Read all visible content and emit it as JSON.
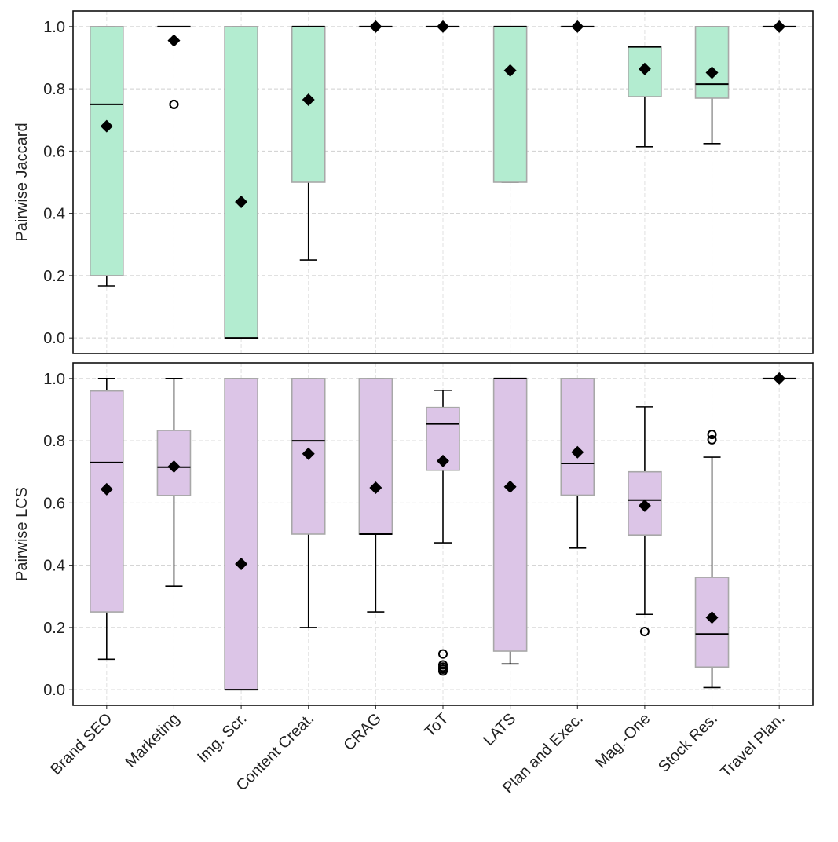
{
  "chart_data": [
    {
      "type": "box",
      "ylabel": "Pairwise Jaccard",
      "ylim": [
        -0.05,
        1.05
      ],
      "yticks": [
        "0.0",
        "0.2",
        "0.4",
        "0.6",
        "0.8",
        "1.0"
      ],
      "grid": true,
      "box_color": "#b3ecd0",
      "categories": [
        "Brand SEO",
        "Marketing",
        "Img. Scr.",
        "Content Creat.",
        "CRAG",
        "ToT",
        "LATS",
        "Plan and Exec.",
        "Mag.-One",
        "Stock Res.",
        "Travel Plan."
      ],
      "boxes": [
        {
          "whislo": 0.167,
          "q1": 0.2,
          "med": 0.75,
          "q3": 1.0,
          "whishi": 1.0,
          "mean": 0.68,
          "fliers": []
        },
        {
          "whislo": 1.0,
          "q1": 1.0,
          "med": 1.0,
          "q3": 1.0,
          "whishi": 1.0,
          "mean": 0.955,
          "fliers": [
            0.75,
            0.75
          ]
        },
        {
          "whislo": 0.0,
          "q1": 0.0,
          "med": 0.0,
          "q3": 1.0,
          "whishi": 1.0,
          "mean": 0.437,
          "fliers": []
        },
        {
          "whislo": 0.25,
          "q1": 0.5,
          "med": 1.0,
          "q3": 1.0,
          "whishi": 1.0,
          "mean": 0.765,
          "fliers": []
        },
        {
          "whislo": 1.0,
          "q1": 1.0,
          "med": 1.0,
          "q3": 1.0,
          "whishi": 1.0,
          "mean": 1.0,
          "fliers": []
        },
        {
          "whislo": 1.0,
          "q1": 1.0,
          "med": 1.0,
          "q3": 1.0,
          "whishi": 1.0,
          "mean": 1.0,
          "fliers": []
        },
        {
          "whislo": 0.5,
          "q1": 0.5,
          "med": 1.0,
          "q3": 1.0,
          "whishi": 1.0,
          "mean": 0.859,
          "fliers": []
        },
        {
          "whislo": 1.0,
          "q1": 1.0,
          "med": 1.0,
          "q3": 1.0,
          "whishi": 1.0,
          "mean": 1.0,
          "fliers": []
        },
        {
          "whislo": 0.614,
          "q1": 0.775,
          "med": 0.935,
          "q3": 0.935,
          "whishi": 0.935,
          "mean": 0.864,
          "fliers": []
        },
        {
          "whislo": 0.624,
          "q1": 0.77,
          "med": 0.815,
          "q3": 1.0,
          "whishi": 1.0,
          "mean": 0.852,
          "fliers": []
        },
        {
          "whislo": 1.0,
          "q1": 1.0,
          "med": 1.0,
          "q3": 1.0,
          "whishi": 1.0,
          "mean": 1.0,
          "fliers": []
        }
      ]
    },
    {
      "type": "box",
      "ylabel": "Pairwise LCS",
      "ylim": [
        -0.05,
        1.05
      ],
      "yticks": [
        "0.0",
        "0.2",
        "0.4",
        "0.6",
        "0.8",
        "1.0"
      ],
      "grid": true,
      "box_color": "#dcc5e7",
      "categories": [
        "Brand SEO",
        "Marketing",
        "Img. Scr.",
        "Content Creat.",
        "CRAG",
        "ToT",
        "LATS",
        "Plan and Exec.",
        "Mag.-One",
        "Stock Res.",
        "Travel Plan."
      ],
      "boxes": [
        {
          "whislo": 0.098,
          "q1": 0.25,
          "med": 0.73,
          "q3": 0.96,
          "whishi": 1.0,
          "mean": 0.644,
          "fliers": []
        },
        {
          "whislo": 0.333,
          "q1": 0.624,
          "med": 0.715,
          "q3": 0.833,
          "whishi": 1.0,
          "mean": 0.717,
          "fliers": []
        },
        {
          "whislo": 0.0,
          "q1": 0.0,
          "med": 0.0,
          "q3": 1.0,
          "whishi": 1.0,
          "mean": 0.404,
          "fliers": []
        },
        {
          "whislo": 0.2,
          "q1": 0.5,
          "med": 0.8,
          "q3": 1.0,
          "whishi": 1.0,
          "mean": 0.758,
          "fliers": []
        },
        {
          "whislo": 0.25,
          "q1": 0.5,
          "med": 0.5,
          "q3": 1.0,
          "whishi": 1.0,
          "mean": 0.649,
          "fliers": []
        },
        {
          "whislo": 0.472,
          "q1": 0.705,
          "med": 0.854,
          "q3": 0.907,
          "whishi": 0.962,
          "mean": 0.735,
          "fliers": [
            0.115,
            0.08,
            0.073,
            0.066,
            0.06
          ]
        },
        {
          "whislo": 0.083,
          "q1": 0.124,
          "med": 1.0,
          "q3": 1.0,
          "whishi": 1.0,
          "mean": 0.652,
          "fliers": []
        },
        {
          "whislo": 0.455,
          "q1": 0.625,
          "med": 0.727,
          "q3": 1.0,
          "whishi": 1.0,
          "mean": 0.763,
          "fliers": []
        },
        {
          "whislo": 0.242,
          "q1": 0.497,
          "med": 0.609,
          "q3": 0.7,
          "whishi": 0.909,
          "mean": 0.591,
          "fliers": [
            0.187
          ]
        },
        {
          "whislo": 0.007,
          "q1": 0.073,
          "med": 0.179,
          "q3": 0.361,
          "whishi": 0.747,
          "mean": 0.232,
          "fliers": [
            0.82,
            0.803
          ]
        },
        {
          "whislo": 1.0,
          "q1": 1.0,
          "med": 1.0,
          "q3": 1.0,
          "whishi": 1.0,
          "mean": 1.0,
          "fliers": []
        }
      ]
    }
  ]
}
